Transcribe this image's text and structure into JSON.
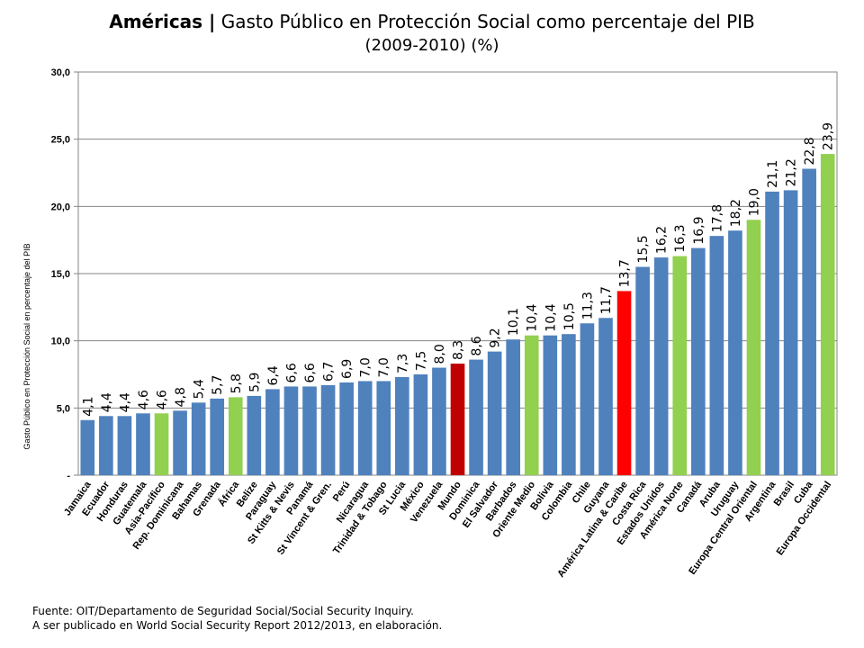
{
  "header": {
    "title_bold": "Américas |",
    "title_rest": "Gasto Público en Protección Social como percentaje del PIB",
    "subtitle": "(2009-2010)   (%)"
  },
  "source": {
    "line1": "Fuente: OIT/Departamento de Seguridad Social/Social Security Inquiry.",
    "line2": "A ser publicado en World Social Security Report 2012/2013,  en elaboración."
  },
  "chart_data": {
    "type": "bar",
    "title": "Américas | Gasto Público en Protección Social como percentaje del PIB (2009-2010) (%)",
    "ylabel": "Gasto Público en Protección Social en percentaje del PIB",
    "xlabel": "",
    "ylim": [
      0,
      30
    ],
    "yticks": [
      0,
      5,
      10,
      15,
      20,
      25,
      30
    ],
    "ytick_labels": [
      "-",
      "5,0",
      "10,0",
      "15,0",
      "20,0",
      "25,0",
      "30,0"
    ],
    "grid": true,
    "colors": {
      "country": "#4f81bd",
      "region": "#92d050",
      "world": "#c00000",
      "latam": "#ff0000"
    },
    "categories": [
      "Jamaica",
      "Ecuador",
      "Honduras",
      "Guatemala",
      "Asia-Pacífico",
      "Rep. Dominicana",
      "Bahamas",
      "Grenada",
      "África",
      "Belize",
      "Paraguay",
      "St Kitts & Nevis",
      "Panamá",
      "St Vincent & Gren.",
      "Perú",
      "Nicaragua",
      "Trinidad & Tobago",
      "St Lucia",
      "México",
      "Venezuela",
      "Mundo",
      "Dominica",
      "El Salvador",
      "Barbados",
      "Oriente Medio",
      "Bolivia",
      "Colombia",
      "Chile",
      "Guyana",
      "América Latina & Caribe",
      "Costa Rica",
      "Estados Unidos",
      "América Norte",
      "Canadá",
      "Aruba",
      "Uruguay",
      "Europa Central Oriental",
      "Argentina",
      "Brasil",
      "Cuba",
      "Europa Occidental"
    ],
    "values": [
      4.1,
      4.4,
      4.4,
      4.6,
      4.6,
      4.8,
      5.4,
      5.7,
      5.8,
      5.9,
      6.4,
      6.6,
      6.6,
      6.7,
      6.9,
      7.0,
      7.0,
      7.3,
      7.5,
      8.0,
      8.3,
      8.6,
      9.2,
      10.1,
      10.4,
      10.4,
      10.5,
      11.3,
      11.7,
      13.7,
      15.5,
      16.2,
      16.3,
      16.9,
      17.8,
      18.2,
      19.0,
      21.1,
      21.2,
      22.8,
      23.9
    ],
    "value_labels": [
      "4,1",
      "4,4",
      "4,4",
      "4,6",
      "4,6",
      "4,8",
      "5,4",
      "5,7",
      "5,8",
      "5,9",
      "6,4",
      "6,6",
      "6,6",
      "6,7",
      "6,9",
      "7,0",
      "7,0",
      "7,3",
      "7,5",
      "8,0",
      "8,3",
      "8,6",
      "9,2",
      "10,1",
      "10,4",
      "10,4",
      "10,5",
      "11,3",
      "11,7",
      "13,7",
      "15,5",
      "16,2",
      "16,3",
      "16,9",
      "17,8",
      "18,2",
      "19,0",
      "21,1",
      "21,2",
      "22,8",
      "23,9"
    ],
    "groups": [
      "country",
      "country",
      "country",
      "country",
      "region",
      "country",
      "country",
      "country",
      "region",
      "country",
      "country",
      "country",
      "country",
      "country",
      "country",
      "country",
      "country",
      "country",
      "country",
      "country",
      "world",
      "country",
      "country",
      "country",
      "region",
      "country",
      "country",
      "country",
      "country",
      "latam",
      "country",
      "country",
      "region",
      "country",
      "country",
      "country",
      "region",
      "country",
      "country",
      "country",
      "region"
    ]
  }
}
